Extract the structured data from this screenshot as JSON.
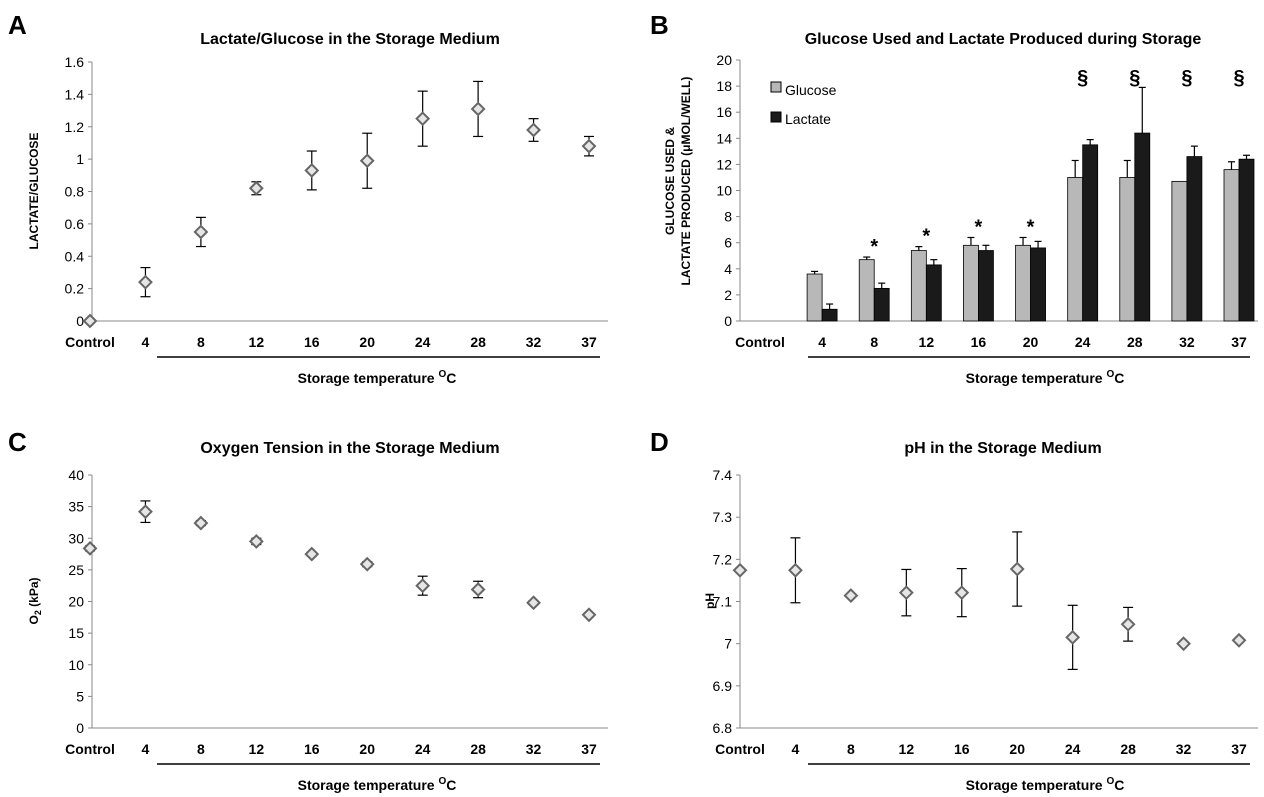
{
  "colors": {
    "axis": "#888888",
    "glucose": "#b8b8b8",
    "lactate": "#1a1a1a",
    "marker_fill": "#e6e6e6",
    "marker_stroke": "#666666"
  },
  "chart_data": [
    {
      "panel": "A",
      "type": "scatter",
      "title": "Lactate/Glucose in the Storage Medium",
      "ylabel": "LACTATE/GLUCOSE",
      "xlabel": "Storage temperature",
      "xlabel_sup": "O",
      "xlabel_unit": "C",
      "categories": [
        "Control",
        "4",
        "8",
        "12",
        "16",
        "20",
        "24",
        "28",
        "32",
        "37"
      ],
      "values": [
        0,
        0.24,
        0.55,
        0.82,
        0.93,
        0.99,
        1.25,
        1.31,
        1.18,
        1.08
      ],
      "errors": [
        0,
        0.09,
        0.09,
        0.04,
        0.12,
        0.17,
        0.17,
        0.17,
        0.07,
        0.06
      ],
      "ylim": [
        0,
        1.6
      ],
      "yticks": [
        "0",
        "0.2",
        "0.4",
        "0.6",
        "0.8",
        "1",
        "1.2",
        "1.4",
        "1.6"
      ],
      "grid": false
    },
    {
      "panel": "B",
      "type": "bar",
      "title": "Glucose Used and Lactate Produced during Storage",
      "ylabel_line1": "GLUCOSE USED &",
      "ylabel_line2": "LACTATE PRODUCED (μMOL/WELL)",
      "xlabel": "Storage temperature",
      "xlabel_sup": "O",
      "xlabel_unit": "C",
      "categories": [
        "Control",
        "4",
        "8",
        "12",
        "16",
        "20",
        "24",
        "28",
        "32",
        "37"
      ],
      "series": [
        {
          "name": "Glucose",
          "values": [
            0,
            3.6,
            4.7,
            5.4,
            5.8,
            5.8,
            11.0,
            11.0,
            10.7,
            11.6
          ],
          "errors": [
            0,
            0.2,
            0.2,
            0.3,
            0.6,
            0.6,
            1.3,
            1.3,
            0,
            0.6
          ]
        },
        {
          "name": "Lactate",
          "values": [
            0,
            0.9,
            2.5,
            4.3,
            5.4,
            5.6,
            13.5,
            14.4,
            12.6,
            12.4
          ],
          "errors": [
            0,
            0.4,
            0.4,
            0.4,
            0.4,
            0.5,
            0.4,
            3.5,
            0.8,
            0.3
          ]
        }
      ],
      "annotations": [
        "",
        "",
        "*",
        "*",
        "*",
        "*",
        "§",
        "§",
        "§",
        "§"
      ],
      "ylim": [
        0,
        20
      ],
      "yticks": [
        "0",
        "2",
        "4",
        "6",
        "8",
        "10",
        "12",
        "14",
        "16",
        "18",
        "20"
      ],
      "legend": "top-left",
      "grid": false
    },
    {
      "panel": "C",
      "type": "scatter",
      "title": "Oxygen Tension in the Storage Medium",
      "ylabel": "O",
      "ylabel_sub": "2",
      "ylabel_rest": " (kPa)",
      "xlabel": "Storage temperature",
      "xlabel_sup": "O",
      "xlabel_unit": "C",
      "categories": [
        "Control",
        "4",
        "8",
        "12",
        "16",
        "20",
        "24",
        "28",
        "32",
        "37"
      ],
      "values": [
        28.4,
        34.2,
        32.4,
        29.5,
        27.5,
        25.9,
        22.5,
        21.9,
        19.8,
        17.9
      ],
      "errors": [
        0.4,
        1.7,
        0.4,
        0.5,
        0.3,
        0.4,
        1.5,
        1.3,
        0.3,
        0.3
      ],
      "ylim": [
        0,
        40
      ],
      "yticks": [
        "0",
        "5",
        "10",
        "15",
        "20",
        "25",
        "30",
        "35",
        "40"
      ],
      "grid": false
    },
    {
      "panel": "D",
      "type": "scatter",
      "title": "pH in the Storage Medium",
      "ylabel": "pH",
      "xlabel": "Storage temperature",
      "xlabel_sup": "O",
      "xlabel_unit": "C",
      "categories": [
        "Control",
        "4",
        "8",
        "12",
        "16",
        "20",
        "24",
        "28",
        "32",
        "37"
      ],
      "values": [
        7.174,
        7.174,
        7.114,
        7.121,
        7.121,
        7.177,
        7.015,
        7.046,
        7.0,
        7.008
      ],
      "errors": [
        0.003,
        0.077,
        0.003,
        0.055,
        0.057,
        0.088,
        0.076,
        0.04,
        0.002,
        0.003
      ],
      "ylim": [
        6.8,
        7.4
      ],
      "yticks": [
        "6.8",
        "6.9",
        "7",
        "7.1",
        "7.2",
        "7.3",
        "7.4"
      ],
      "grid": false
    }
  ]
}
